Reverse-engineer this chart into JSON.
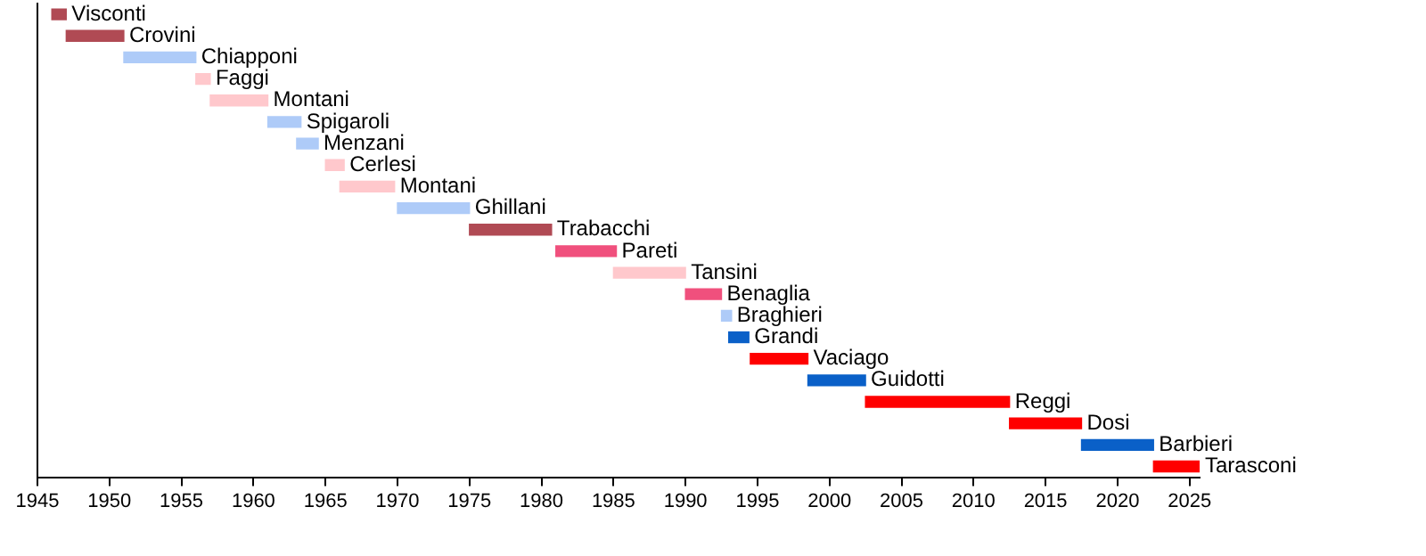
{
  "chart_data": {
    "type": "bar",
    "orientation": "horizontal",
    "categories": [
      "Visconti",
      "Crovini",
      "Chiapponi",
      "Faggi",
      "Montani",
      "Spigaroli",
      "Menzani",
      "Cerlesi",
      "Montani",
      "Ghillani",
      "Trabacchi",
      "Pareti",
      "Tansini",
      "Benaglia",
      "Braghieri",
      "Grandi",
      "Vaciago",
      "Guidotti",
      "Reggi",
      "Dosi",
      "Barbieri",
      "Tarasconi"
    ],
    "base": [
      1946,
      1947,
      1951,
      1956,
      1957,
      1961,
      1963,
      1965,
      1966,
      1970,
      1975,
      1981,
      1985,
      1990,
      1992.5,
      1993,
      1994.5,
      1998.5,
      2002.5,
      2012.5,
      2017.5,
      2022.5
    ],
    "values": [
      1,
      4,
      5,
      1,
      4,
      2.3,
      1.5,
      1.3,
      3.8,
      5,
      5.7,
      4.2,
      5,
      2.5,
      0.7,
      1.4,
      4,
      4,
      10,
      5,
      5,
      3.2
    ],
    "colors": [
      "#b04a54",
      "#b04a54",
      "#aecbf8",
      "#ffc8cc",
      "#ffc8cc",
      "#aecbf8",
      "#aecbf8",
      "#ffc8cc",
      "#ffc8cc",
      "#aecbf8",
      "#b04a54",
      "#f0507d",
      "#ffc8cc",
      "#f0507d",
      "#aecbf8",
      "#0a60c8",
      "#ff0000",
      "#0a60c8",
      "#ff0000",
      "#ff0000",
      "#0a60c8",
      "#ff0000"
    ],
    "xlim": [
      1945,
      2025.7
    ],
    "xticks": [
      1945,
      1950,
      1955,
      1960,
      1965,
      1970,
      1975,
      1980,
      1985,
      1990,
      1995,
      2000,
      2005,
      2010,
      2015,
      2020,
      2025
    ],
    "tick_labels": "x",
    "grid": false,
    "legend": false
  }
}
